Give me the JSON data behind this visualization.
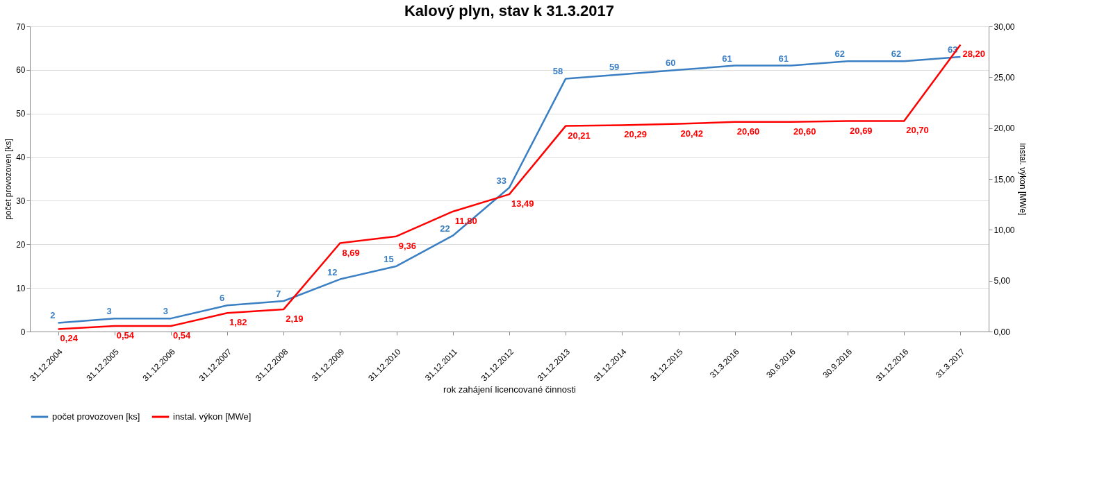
{
  "chart_data": {
    "type": "line",
    "title": "Kalový plyn, stav k 31.3.2017",
    "xlabel": "rok zahájení licencované činnosti",
    "ylabel": "počet provozoven [ks]",
    "y2label": "instal. výkon [MWe]",
    "categories": [
      "31.12.2004",
      "31.12.2005",
      "31.12.2006",
      "31.12.2007",
      "31.12.2008",
      "31.12.2009",
      "31.12.2010",
      "31.12.2011",
      "31.12.2012",
      "31.12.2013",
      "31.12.2014",
      "31.12.2015",
      "31.3.2016",
      "30.6.2016",
      "30.9.2016",
      "31.12.2016",
      "31.3.2017"
    ],
    "series": [
      {
        "name": "počet provozoven [ks]",
        "color": "#3a7fc4",
        "values": [
          2,
          3,
          3,
          6,
          7,
          12,
          15,
          22,
          33,
          58,
          59,
          60,
          61,
          61,
          62,
          62,
          63
        ],
        "value_labels": [
          "2",
          "3",
          "3",
          "6",
          "7",
          "12",
          "15",
          "22",
          "33",
          "58",
          "59",
          "60",
          "61",
          "61",
          "62",
          "62",
          "63"
        ]
      },
      {
        "name": "instal. výkon [MWe]",
        "color": "#ff0000",
        "axis": "y2",
        "values": [
          0.24,
          0.54,
          0.54,
          1.82,
          2.19,
          8.69,
          9.36,
          11.8,
          13.49,
          20.21,
          20.29,
          20.42,
          20.6,
          20.6,
          20.69,
          20.7,
          28.2
        ],
        "value_labels": [
          "0,24",
          "0,54",
          "0,54",
          "1,82",
          "2,19",
          "8,69",
          "9,36",
          "11,80",
          "13,49",
          "20,21",
          "20,29",
          "20,42",
          "20,60",
          "20,60",
          "20,69",
          "20,70",
          "28,20"
        ]
      }
    ],
    "ylim": [
      0,
      70
    ],
    "yticks": [
      0,
      10,
      20,
      30,
      40,
      50,
      60,
      70
    ],
    "y2lim": [
      0,
      30
    ],
    "y2ticks": [
      {
        "value": 0,
        "label": "0,00"
      },
      {
        "value": 5,
        "label": "5,00"
      },
      {
        "value": 10,
        "label": "10,00"
      },
      {
        "value": 15,
        "label": "15,00"
      },
      {
        "value": 20,
        "label": "20,00"
      },
      {
        "value": 25,
        "label": "25,00"
      },
      {
        "value": 30,
        "label": "30,00"
      }
    ],
    "grid": "y",
    "legend": "bottom",
    "marker": "none",
    "line_style": "solid"
  }
}
